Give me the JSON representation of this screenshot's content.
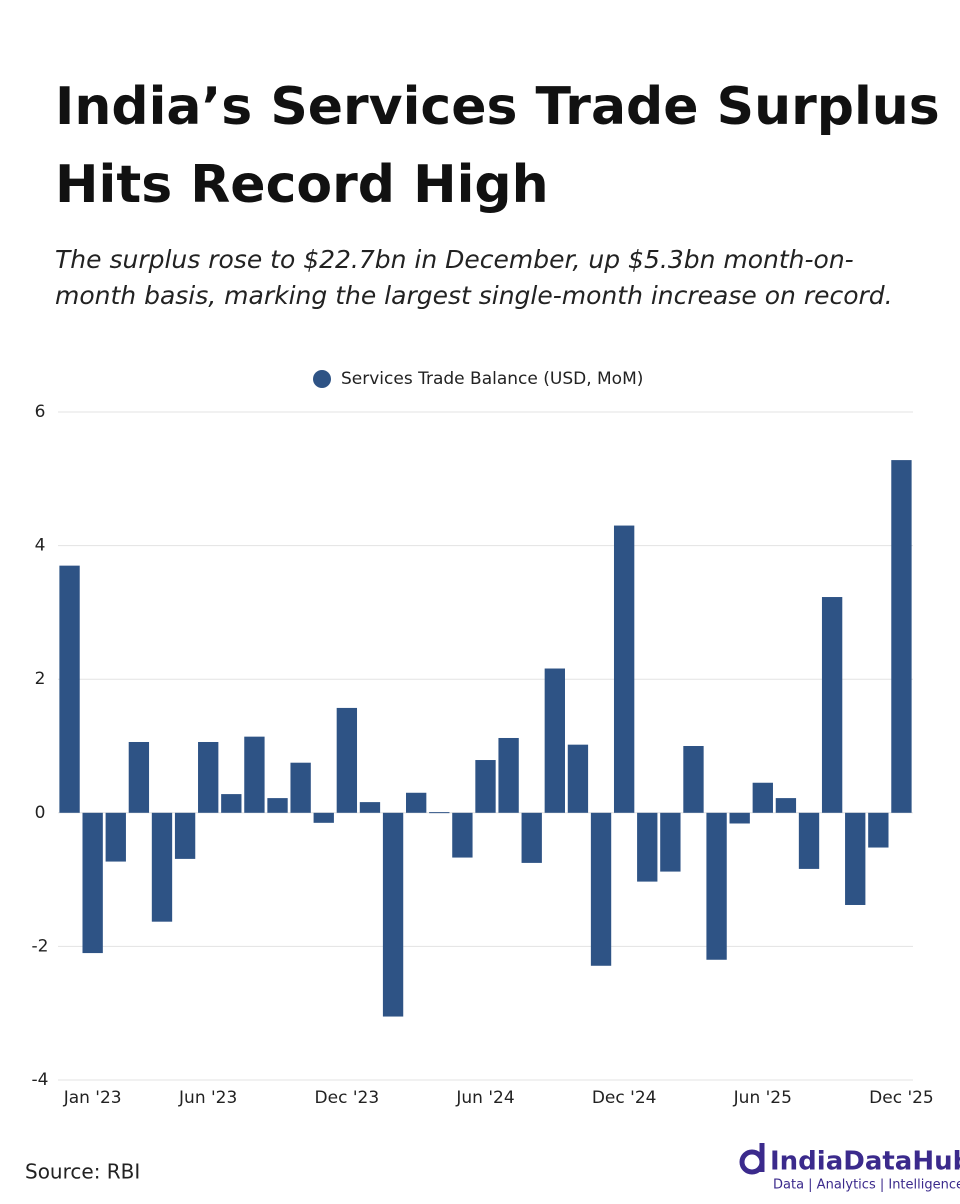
{
  "chart_data": {
    "type": "bar",
    "title": [
      "India’s Services Trade Surplus",
      "Hits Record High"
    ],
    "subtitle": [
      "The surplus rose to $22.7bn in December, up $5.3bn month-on-",
      "month basis, marking the largest single-month increase on record."
    ],
    "series": [
      {
        "name": "Services Trade Balance (USD, MoM)",
        "color": "#2e5385",
        "values": [
          3.7,
          -2.1,
          -0.73,
          1.06,
          -1.63,
          -0.69,
          1.06,
          0.28,
          1.14,
          0.22,
          0.75,
          -0.15,
          1.57,
          0.16,
          -3.05,
          0.3,
          0.01,
          -0.67,
          0.79,
          1.12,
          -0.75,
          2.16,
          1.02,
          -2.29,
          4.3,
          -1.03,
          -0.88,
          1.0,
          -2.2,
          -0.16,
          0.45,
          0.22,
          -0.84,
          3.23,
          -1.38,
          -0.52,
          5.28
        ]
      }
    ],
    "categories": [
      null,
      "Jan '23",
      null,
      null,
      null,
      null,
      "Jun '23",
      null,
      null,
      null,
      null,
      null,
      "Dec '23",
      null,
      null,
      null,
      null,
      null,
      "Jun '24",
      null,
      null,
      null,
      null,
      null,
      "Dec '24",
      null,
      null,
      null,
      null,
      null,
      "Jun '25",
      null,
      null,
      null,
      null,
      null,
      "Dec '25"
    ],
    "ylim": [
      -4,
      6
    ],
    "yticks": [
      -4,
      -2,
      0,
      2,
      4,
      6
    ],
    "grid": true,
    "legend": "top"
  },
  "source": "Source: RBI",
  "brand": {
    "name": "IndiaDataHub",
    "tagline": "Data | Analytics | Intelligence"
  }
}
